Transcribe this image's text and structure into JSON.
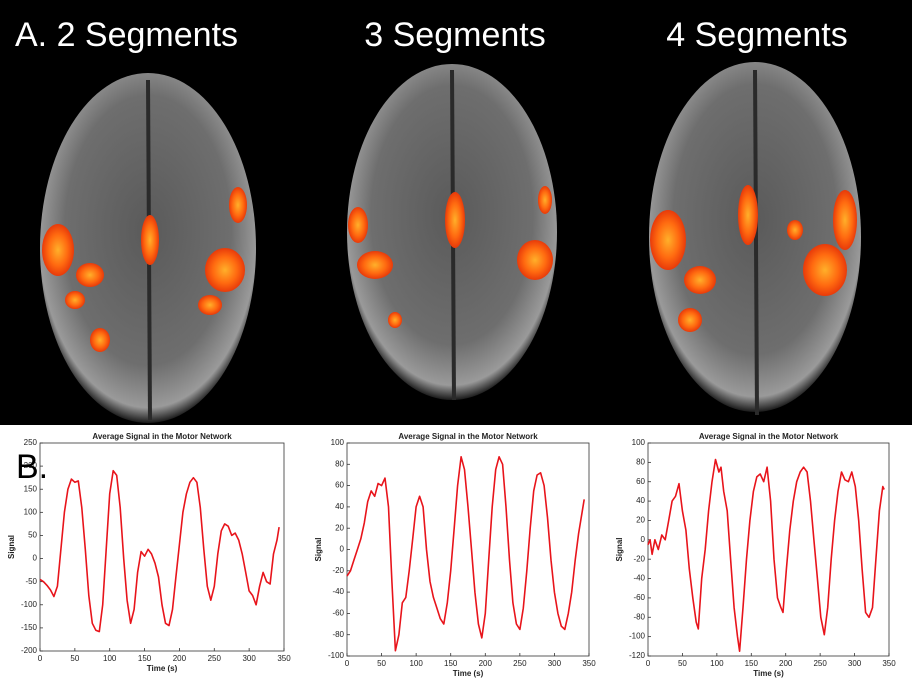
{
  "header": {
    "panel_titles": [
      "A. 2 Segments",
      "3 Segments",
      "4 Segments"
    ],
    "panel_b_label": "B."
  },
  "chart_data": [
    {
      "type": "line",
      "title": "Average Signal in the Motor Network",
      "xlabel": "Time (s)",
      "ylabel": "Signal",
      "color": "#e8141b",
      "xlim": [
        0,
        350
      ],
      "xticks": [
        0,
        50,
        100,
        150,
        200,
        250,
        300,
        350
      ],
      "ylim": [
        -200,
        250
      ],
      "yticks": [
        -200,
        -150,
        -100,
        -50,
        0,
        50,
        100,
        150,
        200,
        250
      ],
      "x": [
        0,
        5,
        10,
        15,
        20,
        25,
        30,
        35,
        40,
        45,
        50,
        55,
        60,
        65,
        70,
        75,
        80,
        85,
        90,
        95,
        100,
        105,
        110,
        115,
        120,
        125,
        130,
        135,
        140,
        145,
        150,
        155,
        160,
        165,
        170,
        175,
        180,
        185,
        190,
        195,
        200,
        205,
        210,
        215,
        220,
        225,
        230,
        235,
        240,
        245,
        250,
        255,
        260,
        265,
        270,
        275,
        280,
        285,
        290,
        295,
        300,
        305,
        310,
        315,
        320,
        325,
        330,
        335,
        340,
        343
      ],
      "values": [
        -45,
        -50,
        -58,
        -68,
        -82,
        -60,
        20,
        100,
        150,
        172,
        165,
        168,
        110,
        20,
        -80,
        -140,
        -155,
        -158,
        -100,
        20,
        140,
        190,
        180,
        110,
        0,
        -90,
        -140,
        -110,
        -30,
        15,
        5,
        20,
        10,
        -10,
        -40,
        -100,
        -140,
        -145,
        -110,
        -40,
        30,
        100,
        140,
        165,
        175,
        165,
        110,
        20,
        -60,
        -90,
        -60,
        10,
        60,
        75,
        70,
        50,
        55,
        40,
        10,
        -30,
        -70,
        -80,
        -100,
        -60,
        -30,
        -50,
        -55,
        10,
        40,
        68
      ]
    },
    {
      "type": "line",
      "title": "Average Signal in the Motor Network",
      "xlabel": "Time (s)",
      "ylabel": "Signal",
      "color": "#e8141b",
      "xlim": [
        0,
        350
      ],
      "xticks": [
        0,
        50,
        100,
        150,
        200,
        250,
        300,
        350
      ],
      "ylim": [
        -100,
        100
      ],
      "yticks": [
        -100,
        -80,
        -60,
        -40,
        -20,
        0,
        20,
        40,
        60,
        80,
        100
      ],
      "x": [
        0,
        5,
        10,
        15,
        20,
        25,
        30,
        35,
        40,
        45,
        50,
        55,
        60,
        65,
        70,
        75,
        80,
        85,
        90,
        95,
        100,
        105,
        110,
        115,
        120,
        125,
        130,
        135,
        140,
        145,
        150,
        155,
        160,
        165,
        170,
        175,
        180,
        185,
        190,
        195,
        200,
        205,
        210,
        215,
        220,
        225,
        230,
        235,
        240,
        245,
        250,
        255,
        260,
        265,
        270,
        275,
        280,
        285,
        290,
        295,
        300,
        305,
        310,
        315,
        320,
        325,
        330,
        335,
        340,
        343
      ],
      "values": [
        -25,
        -20,
        -10,
        0,
        10,
        25,
        45,
        55,
        50,
        62,
        60,
        67,
        40,
        -30,
        -95,
        -80,
        -50,
        -45,
        -20,
        10,
        40,
        50,
        40,
        0,
        -30,
        -45,
        -55,
        -65,
        -70,
        -50,
        -20,
        20,
        60,
        87,
        75,
        40,
        0,
        -40,
        -70,
        -83,
        -60,
        -10,
        40,
        75,
        87,
        80,
        40,
        -10,
        -50,
        -70,
        -75,
        -55,
        -20,
        20,
        55,
        70,
        72,
        60,
        30,
        -10,
        -40,
        -60,
        -72,
        -75,
        -60,
        -40,
        -10,
        15,
        35,
        47
      ]
    },
    {
      "type": "line",
      "title": "Average Signal in the Motor Network",
      "xlabel": "Time (s)",
      "ylabel": "Signal",
      "color": "#e8141b",
      "xlim": [
        0,
        350
      ],
      "xticks": [
        0,
        50,
        100,
        150,
        200,
        250,
        300,
        350
      ],
      "ylim": [
        -120,
        100
      ],
      "yticks": [
        -120,
        -100,
        -80,
        -60,
        -40,
        -20,
        0,
        20,
        40,
        60,
        80,
        100
      ],
      "x": [
        0,
        3,
        6,
        10,
        15,
        20,
        25,
        30,
        35,
        40,
        45,
        50,
        55,
        60,
        65,
        70,
        73,
        78,
        83,
        88,
        93,
        98,
        103,
        106,
        110,
        115,
        120,
        125,
        130,
        133,
        138,
        143,
        148,
        153,
        158,
        163,
        168,
        173,
        178,
        183,
        188,
        193,
        196,
        201,
        206,
        211,
        216,
        221,
        226,
        231,
        236,
        241,
        246,
        251,
        256,
        261,
        266,
        271,
        276,
        281,
        286,
        291,
        296,
        301,
        306,
        311,
        316,
        321,
        326,
        331,
        336,
        341,
        343
      ],
      "values": [
        -5,
        0,
        -15,
        0,
        -10,
        5,
        0,
        20,
        40,
        45,
        58,
        30,
        10,
        -30,
        -60,
        -85,
        -92,
        -40,
        -10,
        30,
        60,
        83,
        70,
        75,
        50,
        30,
        -20,
        -70,
        -100,
        -115,
        -70,
        -20,
        20,
        50,
        65,
        68,
        60,
        75,
        40,
        -20,
        -60,
        -70,
        -75,
        -30,
        10,
        40,
        60,
        70,
        75,
        70,
        40,
        0,
        -40,
        -80,
        -98,
        -70,
        -20,
        20,
        50,
        70,
        62,
        60,
        70,
        55,
        20,
        -30,
        -75,
        -80,
        -70,
        -20,
        30,
        55,
        52
      ]
    }
  ]
}
